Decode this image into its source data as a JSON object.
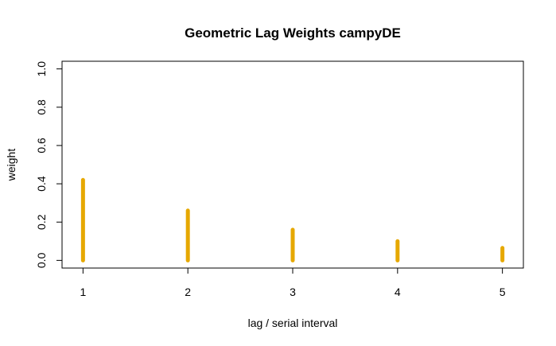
{
  "chart_data": {
    "type": "bar",
    "title": "Geometric Lag Weights campyDE",
    "xlabel": "lag / serial interval",
    "ylabel": "weight",
    "x": [
      1,
      2,
      3,
      4,
      5
    ],
    "values": [
      0.42,
      0.26,
      0.16,
      0.1,
      0.065
    ],
    "xticks": [
      "1",
      "2",
      "3",
      "4",
      "5"
    ],
    "yticks": [
      "0.0",
      "0.2",
      "0.4",
      "0.6",
      "0.8",
      "1.0"
    ],
    "xlim": [
      0.8,
      5.2
    ],
    "ylim": [
      -0.04,
      1.04
    ],
    "color": "#E6A800",
    "grid": false,
    "legend": "none"
  }
}
